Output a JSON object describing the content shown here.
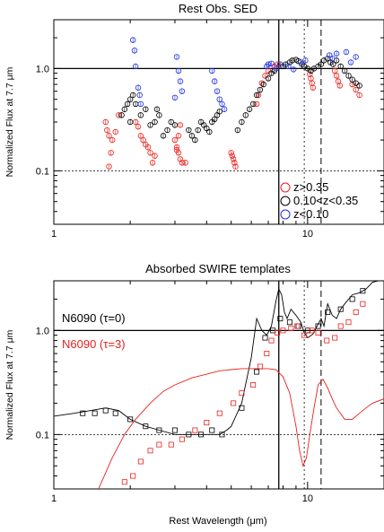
{
  "figure": {
    "xlabel": "Rest Wavelength (μm)",
    "ylabel": "Normalized Flux at 7.7 μm"
  },
  "chart_data": [
    {
      "type": "scatter",
      "title": "Rest Obs. SED",
      "xscale": "log",
      "yscale": "log",
      "xlim": [
        1,
        20
      ],
      "ylim": [
        0.03,
        3
      ],
      "xticks": [
        1,
        10
      ],
      "xtick_labels": [
        "1",
        "10"
      ],
      "yticks": [
        0.1,
        1.0
      ],
      "ytick_labels": [
        "0.1",
        "1.0"
      ],
      "reference_lines": {
        "horizontal_solid": 1.0,
        "horizontal_dotted": 0.1,
        "vertical_solid": 7.7,
        "vertical_dotted": 9.7,
        "vertical_dashed": 11.3
      },
      "legend": {
        "position": "bottom-right",
        "entries": [
          {
            "label": "z>0.35",
            "color": "#e8211c"
          },
          {
            "label": "0.10<z<0.35",
            "color": "#000000"
          },
          {
            "label": "z<0.10",
            "color": "#1c30e0"
          }
        ]
      },
      "series": [
        {
          "name": "z>0.35",
          "color": "#e8211c",
          "marker": "circle",
          "x": [
            1.6,
            1.62,
            1.65,
            1.7,
            1.75,
            1.8,
            1.65,
            1.68,
            2.1,
            2.15,
            2.2,
            2.25,
            2.3,
            2.4,
            2.5,
            2.45,
            2.35,
            3.0,
            3.05,
            3.1,
            3.15,
            3.2,
            3.3,
            3.05,
            3.1,
            3.15,
            5.0,
            5.05,
            5.1,
            5.15,
            5.2,
            6.3,
            6.4,
            6.6,
            6.8,
            7.0,
            7.4,
            7.6,
            10.2,
            10.3,
            10.4,
            10.5,
            12.8,
            13.0,
            13.2,
            13.4,
            15.0,
            15.5,
            16.0
          ],
          "y": [
            0.3,
            0.25,
            0.22,
            0.2,
            0.24,
            0.35,
            0.11,
            0.15,
            0.3,
            0.27,
            0.22,
            0.2,
            0.18,
            0.15,
            0.14,
            0.12,
            0.17,
            0.2,
            0.17,
            0.15,
            0.13,
            0.12,
            0.12,
            0.16,
            0.22,
            0.28,
            0.15,
            0.14,
            0.13,
            0.12,
            0.11,
            0.45,
            0.55,
            0.72,
            0.85,
            0.95,
            1.05,
            1.1,
            0.88,
            0.8,
            0.72,
            0.65,
            0.95,
            0.85,
            0.75,
            0.68,
            0.7,
            0.62,
            0.55
          ]
        },
        {
          "name": "0.10<z<0.35",
          "color": "#000000",
          "marker": "circle",
          "x": [
            1.85,
            1.9,
            1.95,
            2.0,
            2.05,
            2.1,
            2.0,
            2.2,
            2.3,
            2.4,
            2.5,
            2.55,
            2.6,
            2.7,
            2.8,
            2.9,
            3.0,
            3.4,
            3.5,
            3.6,
            3.7,
            3.8,
            3.9,
            4.0,
            4.1,
            4.2,
            4.3,
            4.4,
            4.5,
            5.3,
            5.5,
            5.7,
            5.9,
            6.1,
            6.3,
            6.5,
            6.7,
            7.0,
            7.2,
            7.4,
            8.0,
            8.2,
            8.5,
            8.7,
            9.0,
            9.2,
            9.5,
            9.7,
            10.0,
            10.3,
            10.6,
            11.0,
            11.3,
            11.6,
            12.0,
            12.3,
            12.6,
            13.0,
            13.5,
            14.0,
            14.5,
            15.0,
            15.5,
            16.0
          ],
          "y": [
            0.35,
            0.4,
            0.45,
            0.5,
            0.55,
            0.45,
            0.3,
            0.35,
            0.4,
            0.28,
            0.3,
            0.4,
            0.35,
            0.22,
            0.25,
            0.3,
            0.28,
            0.25,
            0.22,
            0.2,
            0.25,
            0.3,
            0.28,
            0.26,
            0.24,
            0.3,
            0.32,
            0.35,
            0.38,
            0.25,
            0.3,
            0.35,
            0.4,
            0.45,
            0.55,
            0.62,
            0.7,
            0.8,
            0.9,
            0.95,
            1.05,
            1.1,
            1.15,
            1.2,
            1.22,
            1.18,
            1.1,
            1.05,
            1.0,
            0.95,
            1.0,
            1.05,
            1.1,
            1.2,
            1.25,
            1.15,
            1.1,
            1.2,
            1.05,
            0.95,
            0.85,
            0.78,
            0.72,
            0.68
          ]
        },
        {
          "name": "z<0.10",
          "color": "#1c30e0",
          "marker": "circle",
          "x": [
            2.05,
            2.08,
            2.1,
            2.15,
            2.18,
            2.2,
            3.05,
            3.1,
            3.15,
            3.2,
            3.0,
            4.2,
            4.3,
            4.4,
            4.5,
            4.6,
            4.7,
            6.9,
            7.0,
            7.2,
            7.5,
            7.8,
            8.4,
            8.8,
            9.4,
            9.8,
            12.2,
            12.5,
            13.0,
            14.2,
            14.8,
            15.5
          ],
          "y": [
            1.9,
            1.5,
            1.05,
            0.65,
            0.55,
            0.45,
            1.3,
            0.95,
            0.75,
            0.6,
            0.52,
            0.95,
            0.75,
            0.6,
            0.5,
            0.45,
            0.4,
            1.05,
            1.1,
            1.12,
            1.0,
            1.1,
            1.05,
            0.98,
            1.15,
            1.2,
            1.35,
            1.25,
            1.4,
            1.45,
            1.15,
            1.3
          ]
        }
      ]
    },
    {
      "type": "line",
      "title": "Absorbed SWIRE templates",
      "xscale": "log",
      "yscale": "log",
      "xlim": [
        1,
        20
      ],
      "ylim": [
        0.03,
        3
      ],
      "xticks": [
        1,
        10
      ],
      "xtick_labels": [
        "1",
        "10"
      ],
      "yticks": [
        0.1,
        1.0
      ],
      "ytick_labels": [
        "0.1",
        "1.0"
      ],
      "reference_lines": {
        "horizontal_solid": 1.0,
        "horizontal_dotted": 0.1,
        "vertical_solid": 7.7,
        "vertical_dotted": 9.7,
        "vertical_dashed": 11.3
      },
      "legend": {
        "position": "top-left",
        "entries": [
          {
            "label": "N6090 (τ=0)",
            "color": "#000000"
          },
          {
            "label": "N6090 (τ=3)",
            "color": "#e8211c"
          }
        ]
      },
      "series": [
        {
          "name": "N6090 (τ=0)",
          "color": "#000000",
          "style": "line",
          "x": [
            1.0,
            1.2,
            1.4,
            1.6,
            1.8,
            2.0,
            2.3,
            2.6,
            3.0,
            3.5,
            4.0,
            4.5,
            4.8,
            5.0,
            5.5,
            6.0,
            6.3,
            6.6,
            6.9,
            7.2,
            7.5,
            7.7,
            7.9,
            8.1,
            8.3,
            8.6,
            9.0,
            9.4,
            9.7,
            10.0,
            10.5,
            11.0,
            11.3,
            11.6,
            12.0,
            12.5,
            13.0,
            13.5,
            14.0,
            15.0,
            16.0,
            17.0,
            18.0,
            20.0
          ],
          "y": [
            0.15,
            0.16,
            0.17,
            0.18,
            0.17,
            0.14,
            0.12,
            0.11,
            0.1,
            0.1,
            0.1,
            0.1,
            0.11,
            0.12,
            0.2,
            0.55,
            1.3,
            1.0,
            0.9,
            1.1,
            1.9,
            2.5,
            2.2,
            1.5,
            1.3,
            1.6,
            1.4,
            1.2,
            0.95,
            0.85,
            0.92,
            1.15,
            1.3,
            1.1,
            1.8,
            1.4,
            1.3,
            1.6,
            1.8,
            2.2,
            2.3,
            2.5,
            2.9,
            3.1
          ]
        },
        {
          "name": "N6090 (τ=3)",
          "color": "#e8211c",
          "style": "line",
          "x": [
            1.5,
            1.7,
            1.9,
            2.1,
            2.4,
            2.7,
            3.0,
            3.5,
            4.0,
            4.5,
            5.0,
            5.5,
            6.0,
            6.5,
            7.0,
            7.5,
            8.0,
            8.5,
            9.0,
            9.3,
            9.6,
            9.9,
            10.2,
            10.6,
            11.0,
            11.5,
            12.0,
            12.5,
            13.0,
            14.0,
            15.0,
            16.0,
            17.0,
            18.0,
            20.0
          ],
          "y": [
            0.03,
            0.06,
            0.1,
            0.14,
            0.2,
            0.26,
            0.3,
            0.35,
            0.38,
            0.41,
            0.42,
            0.43,
            0.43,
            0.43,
            0.43,
            0.42,
            0.36,
            0.25,
            0.12,
            0.07,
            0.05,
            0.06,
            0.1,
            0.18,
            0.3,
            0.34,
            0.28,
            0.22,
            0.18,
            0.14,
            0.14,
            0.16,
            0.18,
            0.2,
            0.22
          ]
        },
        {
          "name": "N6090 (τ=0)",
          "color": "#000000",
          "style": "square",
          "x": [
            1.3,
            1.45,
            1.6,
            1.75,
            2.0,
            2.3,
            2.6,
            3.0,
            3.4,
            3.8,
            4.2,
            4.6,
            5.5,
            6.3,
            6.8,
            7.3,
            7.8,
            8.5,
            9.2,
            10.0,
            11.0,
            12.0,
            13.5,
            15.0,
            16.5
          ],
          "y": [
            0.16,
            0.16,
            0.17,
            0.16,
            0.14,
            0.12,
            0.11,
            0.11,
            0.1,
            0.1,
            0.11,
            0.1,
            0.18,
            0.4,
            0.85,
            1.0,
            1.3,
            1.2,
            1.1,
            1.0,
            1.1,
            1.5,
            1.6,
            2.0,
            2.4
          ]
        },
        {
          "name": "N6090 (τ=3)",
          "color": "#e8211c",
          "style": "square",
          "x": [
            1.9,
            2.05,
            2.2,
            2.4,
            2.6,
            2.9,
            3.2,
            3.6,
            4.0,
            4.5,
            5.1,
            5.5,
            6.1,
            6.5,
            6.9,
            7.2,
            7.6,
            8.0,
            8.6,
            9.1,
            9.7,
            10.4,
            11.0,
            11.9,
            12.8,
            13.5,
            14.5,
            15.5,
            16.5
          ],
          "y": [
            0.035,
            0.04,
            0.055,
            0.07,
            0.08,
            0.08,
            0.09,
            0.11,
            0.13,
            0.16,
            0.2,
            0.25,
            0.3,
            0.45,
            0.6,
            0.8,
            0.95,
            1.0,
            1.05,
            1.1,
            0.9,
            1.0,
            0.95,
            0.8,
            0.85,
            1.1,
            1.2,
            1.5,
            1.8
          ]
        }
      ]
    }
  ]
}
